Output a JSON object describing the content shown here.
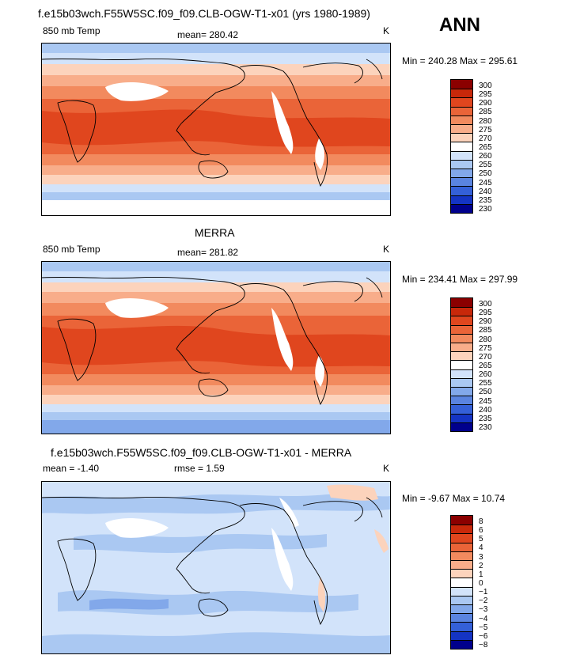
{
  "season": "ANN",
  "panels": [
    {
      "title": "f.e15b03wch.F55W5SC.f09_f09.CLB-OGW-T1-x01 (yrs 1980-1989)",
      "left_label": "850 mb Temp",
      "mid_label": "mean= 280.42",
      "units": "K",
      "minmax": "Min = 240.28 Max = 295.61",
      "colorbar": {
        "labels": [
          "300",
          "295",
          "290",
          "285",
          "280",
          "275",
          "270",
          "265",
          "260",
          "255",
          "250",
          "245",
          "240",
          "235",
          "230"
        ],
        "colors": [
          "#8b0000",
          "#c8280a",
          "#e0461e",
          "#ea6438",
          "#f28a5e",
          "#f8ad8a",
          "#fcd3bc",
          "#ffffff",
          "#d2e3fa",
          "#aac8f2",
          "#82a8ea",
          "#5a84e0",
          "#3460d8",
          "#1434c4",
          "#00008c"
        ]
      }
    },
    {
      "title": "MERRA",
      "left_label": "850 mb Temp",
      "mid_label": "mean= 281.82",
      "units": "K",
      "minmax": "Min = 234.41 Max = 297.99",
      "colorbar": {
        "labels": [
          "300",
          "295",
          "290",
          "285",
          "280",
          "275",
          "270",
          "265",
          "260",
          "255",
          "250",
          "245",
          "240",
          "235",
          "230"
        ],
        "colors": [
          "#8b0000",
          "#c8280a",
          "#e0461e",
          "#ea6438",
          "#f28a5e",
          "#f8ad8a",
          "#fcd3bc",
          "#ffffff",
          "#d2e3fa",
          "#aac8f2",
          "#82a8ea",
          "#5a84e0",
          "#3460d8",
          "#1434c4",
          "#00008c"
        ]
      }
    },
    {
      "title": "f.e15b03wch.F55W5SC.f09_f09.CLB-OGW-T1-x01 - MERRA",
      "left_label": "mean =   -1.40",
      "mid_label": "rmse =    1.59",
      "units": "K",
      "minmax": "Min =   -9.67 Max =   10.74",
      "colorbar": {
        "labels": [
          "8",
          "6",
          "5",
          "4",
          "3",
          "2",
          "1",
          "0",
          "−1",
          "−2",
          "−3",
          "−4",
          "−5",
          "−6",
          "−8"
        ],
        "colors": [
          "#8b0000",
          "#c8280a",
          "#e0461e",
          "#ea6438",
          "#f28a5e",
          "#f8ad8a",
          "#fcd3bc",
          "#ffffff",
          "#d2e3fa",
          "#aac8f2",
          "#82a8ea",
          "#5a84e0",
          "#3460d8",
          "#1434c4",
          "#00008c"
        ]
      }
    }
  ]
}
